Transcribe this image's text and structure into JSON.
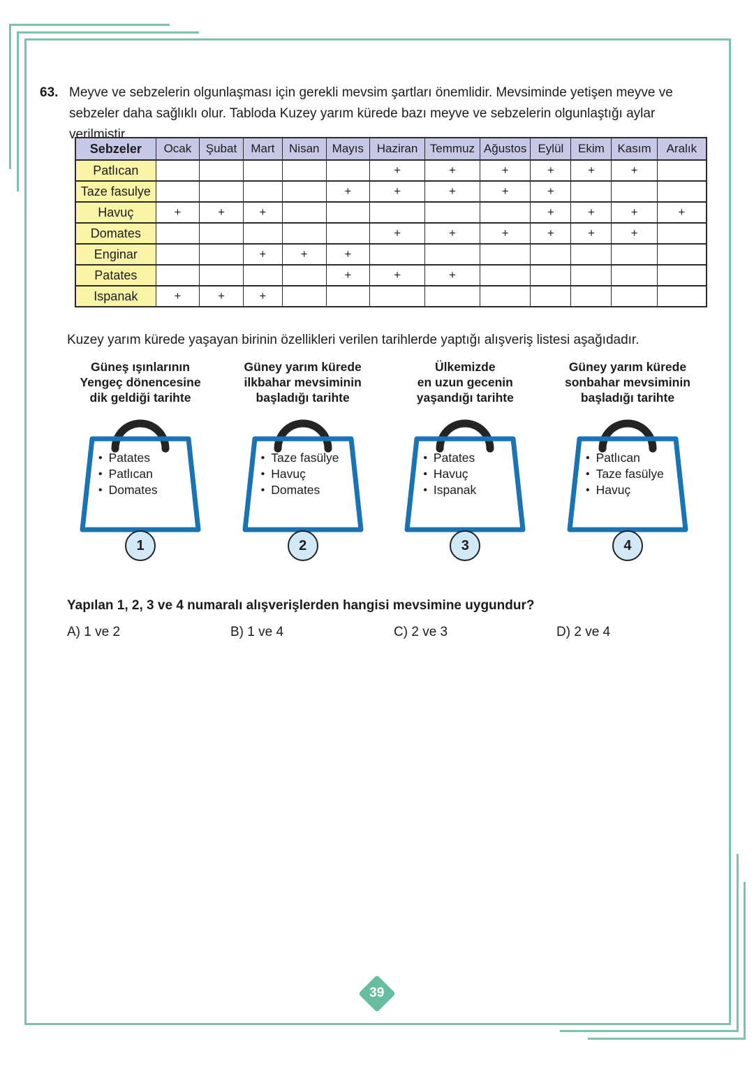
{
  "page": {
    "badge": "39"
  },
  "colors": {
    "frame_teal": "#7cc3ae",
    "badge_teal": "#67bda2",
    "header_lavender": "#c7c8e5",
    "label_yellow": "#faf4a6",
    "bag_blue": "#1a74b4",
    "bag_handle": "#242424",
    "circle_blue": "#d2eaf8"
  },
  "ui": {
    "bullet": "•"
  },
  "question": {
    "number": "63.",
    "intro": "Meyve ve sebzelerin olgunlaşması için gerekli mevsim şartları önemlidir. Mevsiminde yetişen meyve ve sebzeler daha sağlıklı olur. Tabloda Kuzey yarım kürede bazı meyve ve sebzelerin olgunlaştığı aylar verilmiştir.",
    "middle": "Kuzey yarım kürede yaşayan birinin özellikleri verilen tarihlerde yaptığı alışveriş listesi aşağıdadır.",
    "prompt": "Yapılan 1, 2, 3 ve 4 numaralı alışverişlerden hangisi mevsimine uygundur?",
    "choices": [
      {
        "label": "A)",
        "text": "1 ve 2"
      },
      {
        "label": "B)",
        "text": "1 ve 4"
      },
      {
        "label": "C)",
        "text": "2 ve 3"
      },
      {
        "label": "D)",
        "text": "2 ve 4"
      }
    ]
  },
  "table": {
    "header": [
      "Sebzeler",
      "Ocak",
      "Şubat",
      "Mart",
      "Nisan",
      "Mayıs",
      "Haziran",
      "Temmuz",
      "Ağustos",
      "Eylül",
      "Ekim",
      "Kasım",
      "Aralık"
    ],
    "mark": "+",
    "rows": [
      {
        "label": "Patlıcan",
        "cells": [
          "",
          "",
          "",
          "",
          "",
          "+",
          "+",
          "+",
          "+",
          "+",
          "+",
          ""
        ]
      },
      {
        "label": "Taze fasulye",
        "cells": [
          "",
          "",
          "",
          "",
          "+",
          "+",
          "+",
          "+",
          "+",
          "",
          "",
          ""
        ]
      },
      {
        "label": "Havuç",
        "cells": [
          "+",
          "+",
          "+",
          "",
          "",
          "",
          "",
          "",
          "+",
          "+",
          "+",
          "+"
        ]
      },
      {
        "label": "Domates",
        "cells": [
          "",
          "",
          "",
          "",
          "",
          "+",
          "+",
          "+",
          "+",
          "+",
          "+",
          ""
        ]
      },
      {
        "label": "Enginar",
        "cells": [
          "",
          "",
          "+",
          "+",
          "+",
          "",
          "",
          "",
          "",
          "",
          "",
          ""
        ]
      },
      {
        "label": "Patates",
        "cells": [
          "",
          "",
          "",
          "",
          "+",
          "+",
          "+",
          "",
          "",
          "",
          "",
          ""
        ]
      },
      {
        "label": "Ispanak",
        "cells": [
          "+",
          "+",
          "+",
          "",
          "",
          "",
          "",
          "",
          "",
          "",
          "",
          ""
        ]
      }
    ]
  },
  "bags": [
    {
      "title_lines": [
        "Güneş ışınlarının",
        "Yengeç dönencesine",
        "dik geldiği tarihte"
      ],
      "items": [
        "Patates",
        "Patlıcan",
        "Domates"
      ],
      "number": "1"
    },
    {
      "title_lines": [
        "Güney yarım kürede",
        "ilkbahar mevsiminin",
        "başladığı tarihte"
      ],
      "items": [
        "Taze fasülye",
        "Havuç",
        "Domates"
      ],
      "number": "2"
    },
    {
      "title_lines": [
        "Ülkemizde",
        "en uzun gecenin",
        "yaşandığı tarihte"
      ],
      "items": [
        "Patates",
        "Havuç",
        "Ispanak"
      ],
      "number": "3"
    },
    {
      "title_lines": [
        "Güney yarım kürede",
        "sonbahar mevsiminin",
        "başladığı tarihte"
      ],
      "items": [
        "Patlıcan",
        "Taze fasülye",
        "Havuç"
      ],
      "number": "4"
    }
  ]
}
